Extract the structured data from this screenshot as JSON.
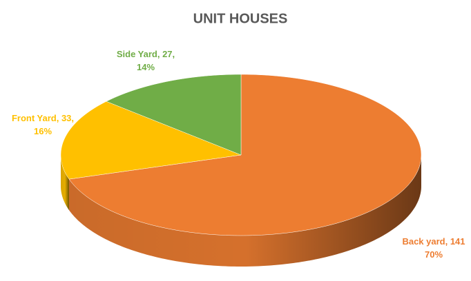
{
  "chart_data": {
    "type": "pie3d",
    "title": "UNIT HOUSES",
    "values": [
      141,
      33,
      27
    ],
    "percentages": [
      70,
      16,
      14
    ],
    "value_labels": [
      "Back yard, 141",
      "Front Yard, 33,",
      "Side Yard, 27,"
    ],
    "percent_labels": [
      "70%",
      "16%",
      "14%"
    ],
    "colors": [
      "#ED7D31",
      "#FFC000",
      "#70AD47"
    ],
    "label_colors": [
      "#ED7D31",
      "#FFC000",
      "#70AD47"
    ]
  }
}
